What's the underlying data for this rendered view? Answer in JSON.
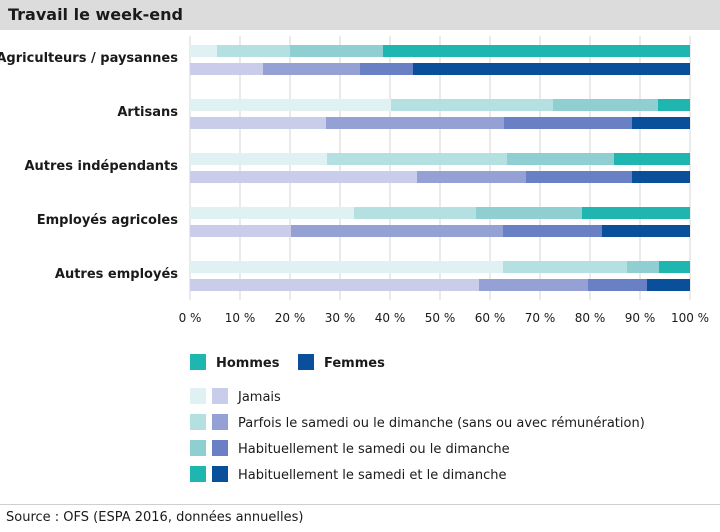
{
  "header": {
    "title": "Travail le week-end"
  },
  "source": "Source : OFS (ESPA 2016, données annuelles)",
  "colors": {
    "hommes": [
      "#dff1f2",
      "#b4e0e1",
      "#8fcfd1",
      "#20b6b0"
    ],
    "femmes": [
      "#c9cde9",
      "#95a1d5",
      "#6a80c4",
      "#0a4f9a"
    ],
    "grid": "#d6d6d6"
  },
  "chart_data": {
    "type": "bar",
    "orientation": "horizontal",
    "stacked": true,
    "title": "Travail le week-end",
    "categories": [
      "Agriculteurs / paysannes",
      "Artisans",
      "Autres indépendants",
      "Employés agricoles",
      "Autres employés"
    ],
    "groups": [
      "Hommes",
      "Femmes"
    ],
    "stack_labels": [
      "Jamais",
      "Parfois le samedi ou le dimanche (sans ou avec rémunération)",
      "Habituellement le samedi ou le dimanche",
      "Habituellement le samedi et le dimanche"
    ],
    "series": [
      {
        "name": "Hommes",
        "values": [
          [
            5.4,
            14.6,
            18.6,
            61.4
          ],
          [
            40.2,
            32.4,
            21.0,
            6.4
          ],
          [
            27.4,
            36.0,
            21.4,
            15.2
          ],
          [
            32.8,
            24.4,
            21.2,
            21.6
          ],
          [
            62.6,
            24.8,
            6.4,
            6.2
          ]
        ]
      },
      {
        "name": "Femmes",
        "values": [
          [
            14.6,
            19.4,
            10.6,
            55.4
          ],
          [
            27.2,
            35.6,
            25.6,
            11.6
          ],
          [
            45.4,
            21.8,
            21.2,
            11.6
          ],
          [
            20.2,
            42.4,
            19.8,
            17.6
          ],
          [
            57.8,
            21.8,
            11.8,
            8.6
          ]
        ]
      }
    ],
    "xlim": [
      0,
      100
    ],
    "xticks": [
      "0 %",
      "10 %",
      "20 %",
      "30 %",
      "40 %",
      "50 %",
      "60 %",
      "70 %",
      "80 %",
      "90 %",
      "100 %"
    ],
    "grid": true
  }
}
